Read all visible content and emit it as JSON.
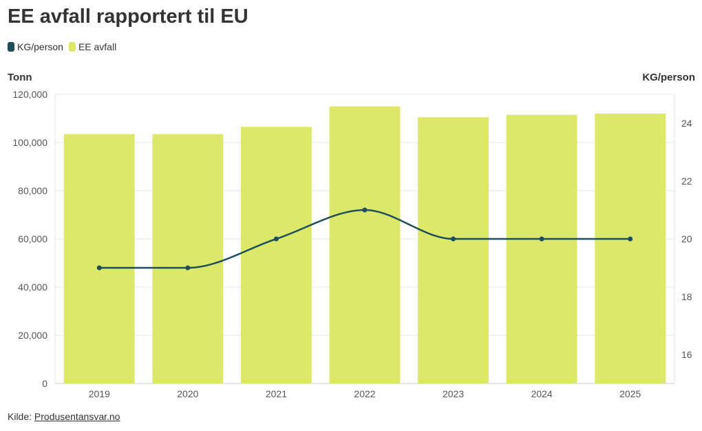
{
  "header": {
    "title": "EE avfall rapportert til EU"
  },
  "legend": [
    {
      "label": "KG/person",
      "color": "#1f4e5a"
    },
    {
      "label": "EE avfall",
      "color": "#dbe86a"
    }
  ],
  "axes": {
    "left_title": "Tonn",
    "right_title": "KG/person"
  },
  "footer": {
    "prefix": "Kilde: ",
    "link_text": "Produsentansvar.no"
  },
  "chart_data": {
    "type": "bar+line",
    "title": "EE avfall rapportert til EU",
    "categories": [
      "2019",
      "2020",
      "2021",
      "2022",
      "2023",
      "2024",
      "2025"
    ],
    "series": [
      {
        "name": "EE avfall",
        "type": "bar",
        "axis": "left",
        "color": "#dbe86a",
        "values": [
          103500,
          103500,
          106500,
          115000,
          110500,
          111500,
          112000
        ]
      },
      {
        "name": "KG/person",
        "type": "line",
        "axis": "right",
        "color": "#1f4e5a",
        "values": [
          19,
          19,
          20,
          21,
          20,
          20,
          20
        ]
      }
    ],
    "y_left": {
      "label": "Tonn",
      "range": [
        0,
        120000
      ],
      "ticks": [
        0,
        20000,
        40000,
        60000,
        80000,
        100000,
        120000
      ],
      "tick_labels": [
        "0",
        "20,000",
        "40,000",
        "60,000",
        "80,000",
        "100,000",
        "120,000"
      ]
    },
    "y_right": {
      "label": "KG/person",
      "range": [
        15,
        25
      ],
      "ticks": [
        16,
        18,
        20,
        22,
        24
      ],
      "tick_labels": [
        "16",
        "18",
        "20",
        "22",
        "24"
      ]
    },
    "grid": true,
    "legend_position": "top-left"
  }
}
